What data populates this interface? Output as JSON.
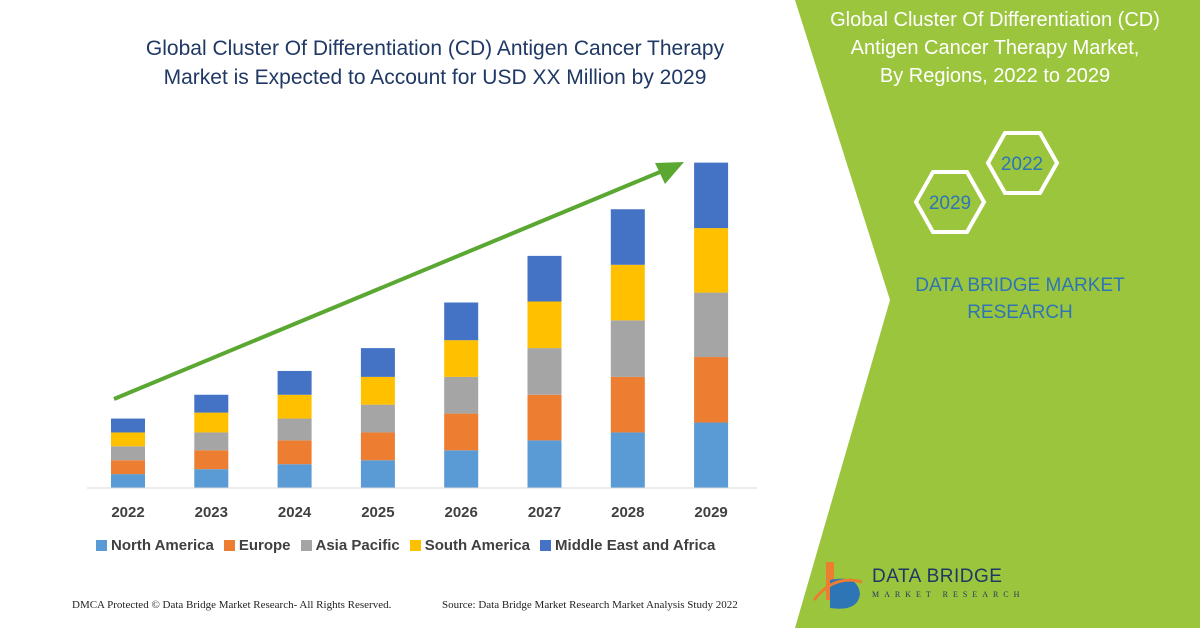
{
  "colors": {
    "north_america": "#5b9bd5",
    "europe": "#ed7d31",
    "asia_pacific": "#a5a5a5",
    "south_america": "#ffc000",
    "middle_east_africa": "#4472c4",
    "panel_green": "#9bc53d",
    "arrow_green": "#5aa832",
    "title_blue": "#1f3864",
    "accent_blue": "#2e75b6"
  },
  "header": {
    "title_line1": "Global Cluster Of Differentiation (CD) Antigen Cancer Therapy",
    "title_line2": "Market is Expected to Account for USD XX Million by 2029"
  },
  "side_panel": {
    "title_line1": "Global Cluster Of Differentiation (CD)",
    "title_line2": "Antigen Cancer Therapy Market,",
    "title_line3": "By Regions, 2022 to 2029",
    "hex_year_1": "2022",
    "hex_year_2": "2029",
    "company_line1": "DATA BRIDGE MARKET",
    "company_line2": "RESEARCH"
  },
  "footer": {
    "copyright": "DMCA Protected © Data Bridge Market Research- All Rights Reserved.",
    "source": "Source: Data Bridge Market Research Market Analysis Study 2022"
  },
  "logo": {
    "name": "DATA BRIDGE",
    "tagline": "MARKET RESEARCH"
  },
  "chart_data": {
    "type": "bar",
    "stacked": true,
    "categories": [
      "2022",
      "2023",
      "2024",
      "2025",
      "2026",
      "2027",
      "2028",
      "2029"
    ],
    "series": [
      {
        "name": "North America",
        "values": [
          14,
          19,
          24,
          28,
          38,
          48,
          56,
          66
        ]
      },
      {
        "name": "Europe",
        "values": [
          14,
          19,
          24,
          28,
          37,
          46,
          56,
          66
        ]
      },
      {
        "name": "Asia Pacific",
        "values": [
          14,
          18,
          22,
          28,
          37,
          47,
          57,
          65
        ]
      },
      {
        "name": "South America",
        "values": [
          14,
          20,
          24,
          28,
          37,
          47,
          56,
          65
        ]
      },
      {
        "name": "Middle East and Africa",
        "values": [
          14,
          18,
          24,
          29,
          38,
          46,
          56,
          66
        ]
      }
    ],
    "axis": {
      "x_visible": true,
      "y_visible": false,
      "grid": false
    },
    "trend_arrow": true,
    "legend_position": "bottom"
  }
}
